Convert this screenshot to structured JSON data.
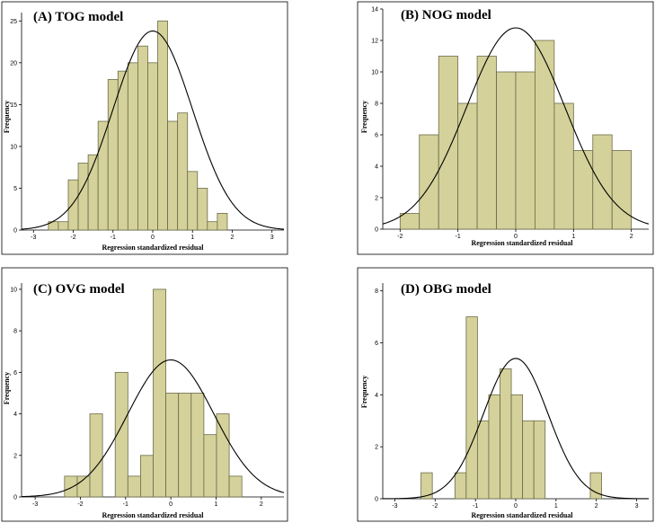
{
  "chart_data": [
    {
      "type": "bar",
      "title": "(A) TOG model",
      "xlabel": "Regression standardized residual",
      "ylabel": "Frequency",
      "xlim": [
        -3.3,
        3.3
      ],
      "ylim": [
        0,
        26
      ],
      "xticks": [
        -3,
        -2,
        -1,
        0,
        1,
        2,
        3
      ],
      "yticks": [
        0,
        5,
        10,
        15,
        20,
        25
      ],
      "bin_width": 0.25,
      "bins": [
        {
          "x0": -2.625,
          "value": 1
        },
        {
          "x0": -2.375,
          "value": 1
        },
        {
          "x0": -2.125,
          "value": 6
        },
        {
          "x0": -1.875,
          "value": 8
        },
        {
          "x0": -1.625,
          "value": 9
        },
        {
          "x0": -1.375,
          "value": 13
        },
        {
          "x0": -1.125,
          "value": 18
        },
        {
          "x0": -0.875,
          "value": 19
        },
        {
          "x0": -0.625,
          "value": 20
        },
        {
          "x0": -0.375,
          "value": 22
        },
        {
          "x0": -0.125,
          "value": 20
        },
        {
          "x0": 0.125,
          "value": 25
        },
        {
          "x0": 0.375,
          "value": 13
        },
        {
          "x0": 0.625,
          "value": 14
        },
        {
          "x0": 0.875,
          "value": 7
        },
        {
          "x0": 1.125,
          "value": 5
        },
        {
          "x0": 1.375,
          "value": 1
        },
        {
          "x0": 1.625,
          "value": 2
        }
      ],
      "normal_curve": {
        "mean": 0,
        "sd": 1,
        "peak": 23.8
      }
    },
    {
      "type": "bar",
      "title": "(B) NOG model",
      "xlabel": "Regression standardized residual",
      "ylabel": "Frequency",
      "xlim": [
        -2.3,
        2.3
      ],
      "ylim": [
        0,
        14
      ],
      "xticks": [
        -2,
        -1,
        0,
        1,
        2
      ],
      "yticks": [
        0,
        2,
        4,
        6,
        8,
        10,
        12,
        14
      ],
      "bin_width": 0.333,
      "bins": [
        {
          "x0": -2.0,
          "value": 1
        },
        {
          "x0": -1.667,
          "value": 6
        },
        {
          "x0": -1.333,
          "value": 11
        },
        {
          "x0": -1.0,
          "value": 8
        },
        {
          "x0": -0.667,
          "value": 11
        },
        {
          "x0": -0.333,
          "value": 10
        },
        {
          "x0": 0.0,
          "value": 10
        },
        {
          "x0": 0.333,
          "value": 12
        },
        {
          "x0": 0.667,
          "value": 8
        },
        {
          "x0": 1.0,
          "value": 5
        },
        {
          "x0": 1.333,
          "value": 6
        },
        {
          "x0": 1.667,
          "value": 5
        }
      ],
      "normal_curve": {
        "mean": 0,
        "sd": 0.85,
        "peak": 12.8
      }
    },
    {
      "type": "bar",
      "title": "(C) OVG model",
      "xlabel": "Regression standardized residual",
      "ylabel": "Frequency",
      "xlim": [
        -3.3,
        2.5
      ],
      "ylim": [
        0,
        10.3
      ],
      "xticks": [
        -3,
        -2,
        -1,
        0,
        1,
        2
      ],
      "yticks": [
        0,
        2,
        4,
        6,
        8,
        10
      ],
      "bin_width": 0.28,
      "bins": [
        {
          "x0": -2.35,
          "value": 1
        },
        {
          "x0": -2.07,
          "value": 1
        },
        {
          "x0": -1.79,
          "value": 4
        },
        {
          "x0": -1.51,
          "value": 0
        },
        {
          "x0": -1.23,
          "value": 6
        },
        {
          "x0": -0.95,
          "value": 1
        },
        {
          "x0": -0.67,
          "value": 2
        },
        {
          "x0": -0.39,
          "value": 10
        },
        {
          "x0": -0.11,
          "value": 5
        },
        {
          "x0": 0.17,
          "value": 5
        },
        {
          "x0": 0.45,
          "value": 5
        },
        {
          "x0": 0.73,
          "value": 3
        },
        {
          "x0": 1.01,
          "value": 4
        },
        {
          "x0": 1.29,
          "value": 1
        }
      ],
      "normal_curve": {
        "mean": 0,
        "sd": 0.95,
        "peak": 6.6
      }
    },
    {
      "type": "bar",
      "title": "(D) OBG model",
      "xlabel": "Regression standardized residual",
      "ylabel": "Frequency",
      "xlim": [
        -3.3,
        3.3
      ],
      "ylim": [
        0,
        8.3
      ],
      "xticks": [
        -3,
        -2,
        -1,
        0,
        1,
        2,
        3
      ],
      "yticks": [
        0,
        2,
        4,
        6,
        8
      ],
      "bin_width": 0.28,
      "bins": [
        {
          "x0": -2.35,
          "value": 1
        },
        {
          "x0": -2.07,
          "value": 0
        },
        {
          "x0": -1.79,
          "value": 0
        },
        {
          "x0": -1.51,
          "value": 1
        },
        {
          "x0": -1.23,
          "value": 7
        },
        {
          "x0": -0.95,
          "value": 3
        },
        {
          "x0": -0.67,
          "value": 4
        },
        {
          "x0": -0.39,
          "value": 5
        },
        {
          "x0": -0.11,
          "value": 4
        },
        {
          "x0": 0.17,
          "value": 3
        },
        {
          "x0": 0.45,
          "value": 3
        },
        {
          "x0": 0.73,
          "value": 0
        },
        {
          "x0": 1.01,
          "value": 0
        },
        {
          "x0": 1.29,
          "value": 0
        },
        {
          "x0": 1.57,
          "value": 0
        },
        {
          "x0": 1.85,
          "value": 1
        }
      ],
      "normal_curve": {
        "mean": 0,
        "sd": 0.8,
        "peak": 5.4
      }
    }
  ]
}
